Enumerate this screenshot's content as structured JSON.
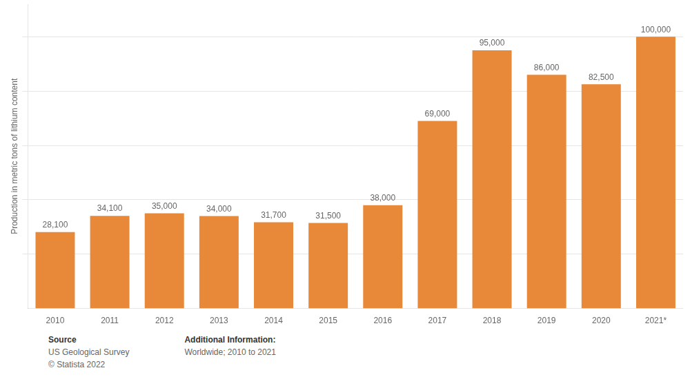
{
  "chart_data": {
    "type": "bar",
    "categories": [
      "2010",
      "2011",
      "2012",
      "2013",
      "2014",
      "2015",
      "2016",
      "2017",
      "2018",
      "2019",
      "2020",
      "2021*"
    ],
    "values": [
      28100,
      34100,
      35000,
      34000,
      31700,
      31500,
      38000,
      69000,
      95000,
      86000,
      82500,
      100000
    ],
    "value_labels": [
      "28,100",
      "34,100",
      "35,000",
      "34,000",
      "31,700",
      "31,500",
      "38,000",
      "69,000",
      "95,000",
      "86,000",
      "82,500",
      "100,000"
    ],
    "data_labels": true,
    "color": "#E8893A",
    "y_label": "Production in metric tons of lithium content",
    "ylim": [
      0,
      112000
    ],
    "yticks": [
      20000,
      40000,
      60000,
      80000,
      100000
    ],
    "grid": true,
    "tick_labels": "x",
    "annotations": [
      [
        "Source",
        "US Geological Survey",
        "© Statista 2022"
      ],
      [
        "Additional Information:",
        "Worldwide; 2010 to 2021"
      ]
    ]
  }
}
